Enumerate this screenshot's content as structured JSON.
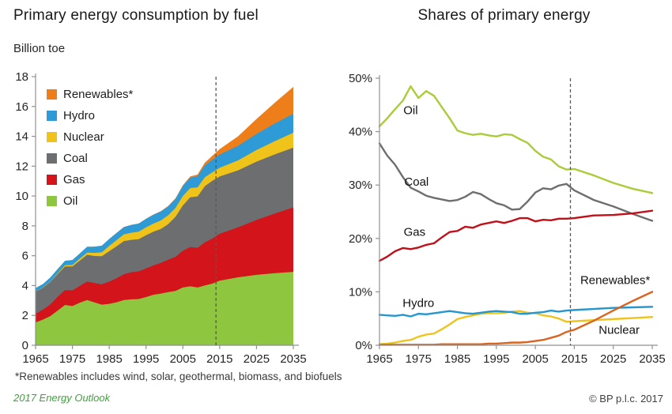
{
  "footnote": "*Renewables includes wind, solar, geothermal, biomass, and biofuels",
  "footer": {
    "left": "2017 Energy Outlook",
    "right": "© BP p.l.c. 2017"
  },
  "colors": {
    "axis": "#8f9193",
    "tick_text": "#262626",
    "dashed_line": "#58595b",
    "footer_green": "#3fa33c"
  },
  "chart_data": [
    {
      "type": "area",
      "title": "Primary energy consumption by fuel",
      "ylabel": "Billion toe",
      "ylim": [
        0,
        18
      ],
      "ytick_step": 2,
      "ytick_suffix": "",
      "xlim": [
        1965,
        2035
      ],
      "xtick_step": 10,
      "grid": false,
      "projection_start": 2014,
      "legend_position": "top-left-inside",
      "years": [
        1965,
        1967,
        1969,
        1971,
        1973,
        1975,
        1977,
        1979,
        1981,
        1983,
        1985,
        1987,
        1989,
        1991,
        1993,
        1995,
        1997,
        1999,
        2001,
        2003,
        2005,
        2007,
        2009,
        2011,
        2013,
        2015,
        2020,
        2025,
        2030,
        2035
      ],
      "series": [
        {
          "name": "Oil",
          "color": "#8fc63f",
          "values": [
            1.53,
            1.72,
            1.95,
            2.32,
            2.7,
            2.63,
            2.85,
            3.03,
            2.87,
            2.72,
            2.77,
            2.88,
            3.03,
            3.08,
            3.1,
            3.23,
            3.38,
            3.46,
            3.56,
            3.64,
            3.87,
            3.95,
            3.87,
            4.01,
            4.13,
            4.33,
            4.55,
            4.72,
            4.83,
            4.92
          ]
        },
        {
          "name": "Gas",
          "color": "#d3141a",
          "values": [
            0.58,
            0.67,
            0.78,
            0.92,
            1.0,
            1.04,
            1.13,
            1.24,
            1.3,
            1.36,
            1.49,
            1.61,
            1.73,
            1.81,
            1.85,
            1.92,
            1.97,
            2.06,
            2.17,
            2.28,
            2.46,
            2.63,
            2.66,
            2.89,
            3.02,
            3.14,
            3.35,
            3.68,
            4.0,
            4.32
          ]
        },
        {
          "name": "Coal",
          "color": "#6d6e70",
          "values": [
            1.49,
            1.45,
            1.52,
            1.53,
            1.58,
            1.61,
            1.69,
            1.79,
            1.81,
            1.89,
            2.04,
            2.14,
            2.22,
            2.17,
            2.16,
            2.22,
            2.26,
            2.27,
            2.38,
            2.68,
            3.04,
            3.33,
            3.44,
            3.77,
            3.87,
            3.84,
            3.82,
            3.9,
            3.96,
            4.0
          ]
        },
        {
          "name": "Nuclear",
          "color": "#efc319",
          "values": [
            0.01,
            0.02,
            0.03,
            0.05,
            0.08,
            0.1,
            0.13,
            0.15,
            0.21,
            0.26,
            0.36,
            0.41,
            0.45,
            0.48,
            0.5,
            0.53,
            0.54,
            0.57,
            0.6,
            0.6,
            0.63,
            0.62,
            0.61,
            0.6,
            0.56,
            0.58,
            0.67,
            0.78,
            0.89,
            1.0
          ]
        },
        {
          "name": "Hydro",
          "color": "#2e9bd6",
          "values": [
            0.22,
            0.24,
            0.26,
            0.29,
            0.3,
            0.33,
            0.35,
            0.39,
            0.41,
            0.44,
            0.46,
            0.48,
            0.49,
            0.52,
            0.54,
            0.57,
            0.59,
            0.6,
            0.59,
            0.61,
            0.66,
            0.7,
            0.74,
            0.79,
            0.85,
            0.89,
            0.98,
            1.08,
            1.18,
            1.27
          ]
        },
        {
          "name": "Renewables*",
          "color": "#ee7e1a",
          "values": [
            0,
            0,
            0,
            0,
            0,
            0,
            0,
            0,
            0.01,
            0.01,
            0.01,
            0.01,
            0.01,
            0.01,
            0.01,
            0.01,
            0.02,
            0.02,
            0.03,
            0.04,
            0.06,
            0.08,
            0.12,
            0.18,
            0.26,
            0.36,
            0.63,
            1.0,
            1.4,
            1.8
          ]
        }
      ]
    },
    {
      "type": "line",
      "title": "Shares of primary energy",
      "ylabel": "",
      "ylim": [
        0,
        50
      ],
      "ytick_step": 10,
      "ytick_suffix": "%",
      "xlim": [
        1965,
        2035
      ],
      "xtick_step": 10,
      "grid": false,
      "projection_start": 2014,
      "legend_position": "labels-on-lines",
      "years": [
        1965,
        1967,
        1969,
        1971,
        1973,
        1975,
        1977,
        1979,
        1981,
        1983,
        1985,
        1987,
        1989,
        1991,
        1993,
        1995,
        1997,
        1999,
        2001,
        2003,
        2005,
        2007,
        2009,
        2011,
        2013,
        2015,
        2020,
        2025,
        2030,
        2035
      ],
      "series": [
        {
          "name": "Oil",
          "color": "#a9cc38",
          "label_x": 1973,
          "label_y": 44.0,
          "values": [
            41.0,
            42.5,
            44.2,
            45.8,
            48.5,
            46.3,
            47.6,
            46.7,
            44.6,
            42.5,
            40.2,
            39.7,
            39.4,
            39.6,
            39.3,
            39.1,
            39.5,
            39.4,
            38.6,
            37.9,
            36.4,
            35.3,
            34.8,
            33.5,
            32.9,
            33.0,
            31.8,
            30.4,
            29.3,
            28.5
          ]
        },
        {
          "name": "Coal",
          "color": "#6d6e70",
          "label_x": 1974.5,
          "label_y": 30.6,
          "values": [
            37.8,
            35.5,
            33.8,
            31.5,
            29.5,
            28.8,
            28.0,
            27.6,
            27.3,
            27.0,
            27.2,
            27.8,
            28.7,
            28.3,
            27.4,
            26.6,
            26.2,
            25.4,
            25.5,
            26.9,
            28.6,
            29.4,
            29.2,
            29.9,
            30.2,
            29.0,
            27.2,
            26.0,
            24.6,
            23.3
          ]
        },
        {
          "name": "Gas",
          "color": "#c01019",
          "label_x": 1974,
          "label_y": 21.2,
          "values": [
            15.8,
            16.6,
            17.6,
            18.2,
            18.0,
            18.3,
            18.8,
            19.1,
            20.2,
            21.2,
            21.4,
            22.2,
            22.0,
            22.6,
            22.9,
            23.2,
            22.9,
            23.3,
            23.8,
            23.8,
            23.2,
            23.5,
            23.4,
            23.7,
            23.7,
            23.8,
            24.3,
            24.4,
            24.7,
            25.2
          ]
        },
        {
          "name": "Nuclear",
          "color": "#eec41c",
          "label_x": 2026.5,
          "label_y": 2.9,
          "values": [
            0.2,
            0.3,
            0.5,
            0.8,
            1.0,
            1.6,
            2.0,
            2.2,
            3.0,
            3.9,
            4.9,
            5.3,
            5.6,
            5.9,
            6.0,
            6.0,
            6.1,
            6.3,
            6.4,
            6.1,
            6.0,
            5.6,
            5.4,
            5.0,
            4.4,
            4.5,
            4.7,
            4.9,
            5.1,
            5.3
          ]
        },
        {
          "name": "Hydro",
          "color": "#2596ce",
          "label_x": 1975,
          "label_y": 7.9,
          "values": [
            5.7,
            5.6,
            5.5,
            5.7,
            5.4,
            5.9,
            5.8,
            6.0,
            6.2,
            6.4,
            6.2,
            6.0,
            5.9,
            6.1,
            6.3,
            6.4,
            6.3,
            6.2,
            5.9,
            5.9,
            6.1,
            6.2,
            6.5,
            6.3,
            6.5,
            6.6,
            6.8,
            7.0,
            7.1,
            7.2
          ]
        },
        {
          "name": "Renewables*",
          "color": "#d9641f",
          "label_x": 2025.5,
          "label_y": 12.2,
          "values": [
            0.1,
            0.1,
            0.1,
            0.1,
            0.1,
            0.1,
            0.1,
            0.1,
            0.2,
            0.2,
            0.2,
            0.2,
            0.2,
            0.2,
            0.3,
            0.3,
            0.4,
            0.5,
            0.5,
            0.6,
            0.8,
            1.0,
            1.4,
            1.8,
            2.5,
            2.9,
            4.6,
            6.5,
            8.3,
            10.0
          ]
        }
      ]
    }
  ]
}
